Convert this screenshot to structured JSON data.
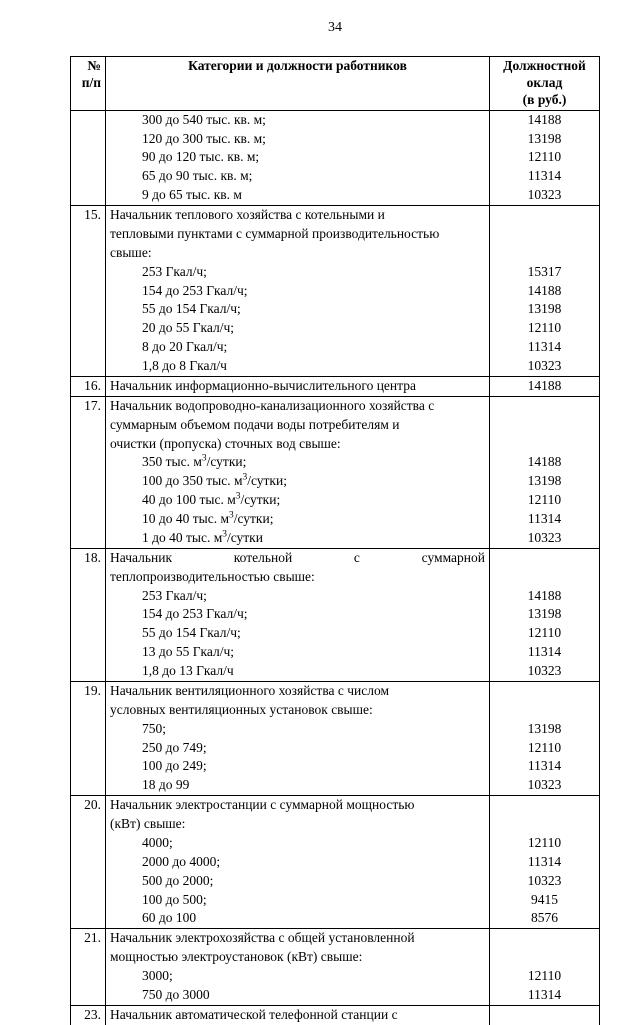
{
  "page_number": "34",
  "header": {
    "col1_line1": "№",
    "col1_line2": "п/п",
    "col2": "Категории и должности работников",
    "col3_line1": "Должностной",
    "col3_line2": "оклад",
    "col3_line3": "(в руб.)"
  },
  "r14": {
    "l1": "300 до 540 тыс. кв. м;",
    "s1": "14188",
    "l2": "120 до 300 тыс. кв. м;",
    "s2": "13198",
    "l3": "90 до 120 тыс. кв. м;",
    "s3": "12110",
    "l4": "65 до 90 тыс. кв. м;",
    "s4": "11314",
    "l5": "9 до 65 тыс. кв. м",
    "s5": "10323"
  },
  "r15": {
    "num": "15.",
    "h1": "Начальник теплового хозяйства с котельными и",
    "h2": "тепловыми пунктами с суммарной производительностью",
    "h3": "свыше:",
    "l1": "253 Гкал/ч;",
    "s1": "15317",
    "l2": "154 до 253 Гкал/ч;",
    "s2": "14188",
    "l3": "55 до 154 Гкал/ч;",
    "s3": "13198",
    "l4": "20 до 55 Гкал/ч;",
    "s4": "12110",
    "l5": "8 до 20 Гкал/ч;",
    "s5": "11314",
    "l6": "1,8 до 8 Гкал/ч",
    "s6": "10323"
  },
  "r16": {
    "num": "16.",
    "t": "Начальник информационно-вычислительного центра",
    "s": "14188"
  },
  "r17": {
    "num": "17.",
    "h1": "Начальник водопроводно-канализационного хозяйства с",
    "h2": "суммарным объемом подачи воды потребителям и",
    "h3": "очистки (пропуска) сточных вод свыше:",
    "l1a": "350 тыс. м",
    "l1b": "/сутки;",
    "s1": "14188",
    "l2a": "100 до 350 тыс. м",
    "l2b": "/сутки;",
    "s2": "13198",
    "l3a": "40 до 100 тыс. м",
    "l3b": "/сутки;",
    "s3": "12110",
    "l4a": "10 до 40 тыс. м",
    "l4b": "/сутки;",
    "s4": "11314",
    "l5a": "1 до 40 тыс. м",
    "l5b": "/сутки",
    "s5": "10323"
  },
  "r18": {
    "num": "18.",
    "h1": "Начальник котельной с суммарной",
    "h2": "теплопроизводительностью свыше:",
    "l1": "253 Гкал/ч;",
    "s1": "14188",
    "l2": "154 до 253 Гкал/ч;",
    "s2": "13198",
    "l3": "55 до 154 Гкал/ч;",
    "s3": "12110",
    "l4": "13 до 55 Гкал/ч;",
    "s4": "11314",
    "l5": "1,8 до 13 Гкал/ч",
    "s5": "10323"
  },
  "r19": {
    "num": "19.",
    "h1": "Начальник вентиляционного хозяйства с числом",
    "h2": "условных вентиляционных установок свыше:",
    "l1": "750;",
    "s1": "13198",
    "l2": "250 до 749;",
    "s2": "12110",
    "l3": "100 до 249;",
    "s3": "11314",
    "l4": "18 до 99",
    "s4": "10323"
  },
  "r20": {
    "num": "20.",
    "h1": "Начальник электростанции с суммарной мощностью",
    "h2": "(кВт) свыше:",
    "l1": "4000;",
    "s1": "12110",
    "l2": "2000 до 4000;",
    "s2": "11314",
    "l3": "500 до 2000;",
    "s3": "10323",
    "l4": "100 до 500;",
    "s4": "9415",
    "l5": "60 до 100",
    "s5": "8576"
  },
  "r21": {
    "num": "21.",
    "h1": "Начальник электрохозяйства с общей установленной",
    "h2": "мощностью электроустановок (кВт) свыше:",
    "l1": "3000;",
    "s1": "12110",
    "l2": "750 до 3000",
    "s2": "11314"
  },
  "r23": {
    "num": "23.",
    "h1": "Начальник автоматической телефонной станции с"
  }
}
